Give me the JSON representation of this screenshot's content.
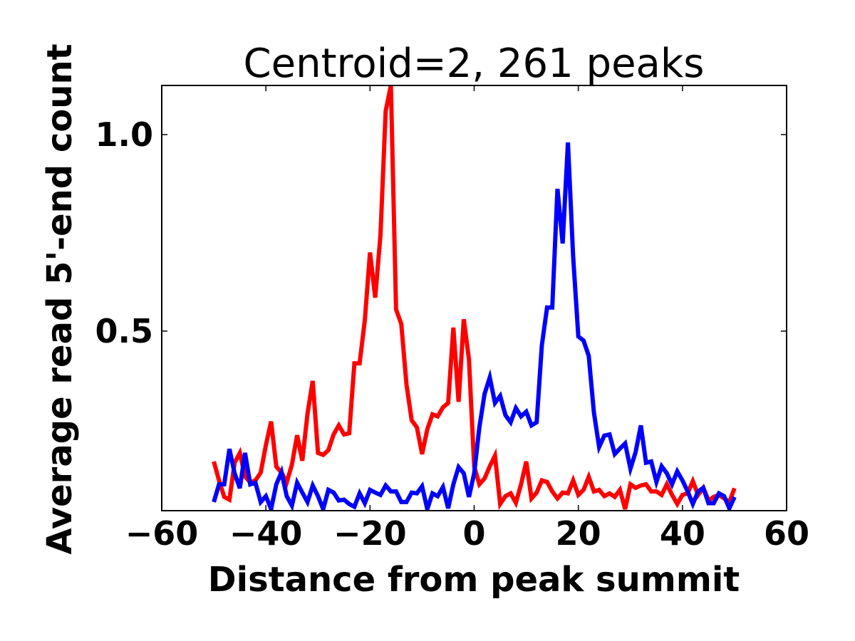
{
  "chart_data": {
    "type": "line",
    "title": "Centroid=2, 261 peaks",
    "xlabel": "Distance from peak summit",
    "ylabel": "Average read 5'-end count",
    "xlim": [
      -60,
      60
    ],
    "ylim": [
      0.043,
      1.125
    ],
    "xticks": [
      -60,
      -40,
      -20,
      0,
      20,
      40,
      60
    ],
    "xtick_labels": [
      "−60",
      "−40",
      "−20",
      "0",
      "20",
      "40",
      "60"
    ],
    "yticks": [
      0.5,
      1.0
    ],
    "ytick_labels": [
      "0.5",
      "1.0"
    ],
    "grid": false,
    "x_start": -50,
    "x_step": 1,
    "series": [
      {
        "name": "red",
        "color": "#ff0000",
        "values": [
          0.168,
          0.12,
          0.078,
          0.071,
          0.165,
          0.19,
          0.13,
          0.115,
          0.12,
          0.14,
          0.21,
          0.27,
          0.155,
          0.14,
          0.115,
          0.16,
          0.235,
          0.17,
          0.29,
          0.373,
          0.19,
          0.185,
          0.197,
          0.237,
          0.26,
          0.237,
          0.24,
          0.418,
          0.418,
          0.527,
          0.7,
          0.585,
          0.745,
          1.06,
          1.125,
          0.555,
          0.518,
          0.364,
          0.273,
          0.255,
          0.187,
          0.25,
          0.288,
          0.283,
          0.306,
          0.317,
          0.509,
          0.32,
          0.53,
          0.428,
          0.156,
          0.11,
          0.125,
          0.156,
          0.183,
          0.06,
          0.08,
          0.087,
          0.063,
          0.11,
          0.168,
          0.074,
          0.089,
          0.12,
          0.116,
          0.092,
          0.074,
          0.089,
          0.087,
          0.12,
          0.083,
          0.096,
          0.129,
          0.092,
          0.096,
          0.08,
          0.087,
          0.078,
          0.096,
          0.047,
          0.11,
          0.101,
          0.107,
          0.11,
          0.092,
          0.092,
          0.083,
          0.11,
          0.083,
          0.06,
          0.083,
          0.087,
          0.118,
          0.083,
          0.101,
          0.069,
          0.078,
          0.083,
          0.074,
          0.065,
          0.1
        ]
      },
      {
        "name": "blue",
        "color": "#0000ff",
        "values": [
          0.065,
          0.11,
          0.11,
          0.2,
          0.138,
          0.1,
          0.19,
          0.11,
          0.114,
          0.065,
          0.08,
          0.047,
          0.11,
          0.141,
          0.08,
          0.056,
          0.114,
          0.089,
          0.065,
          0.107,
          0.08,
          0.047,
          0.096,
          0.089,
          0.069,
          0.071,
          0.06,
          0.053,
          0.087,
          0.062,
          0.096,
          0.089,
          0.083,
          0.107,
          0.092,
          0.092,
          0.065,
          0.065,
          0.089,
          0.087,
          0.105,
          0.047,
          0.087,
          0.08,
          0.103,
          0.049,
          0.11,
          0.154,
          0.138,
          0.078,
          0.138,
          0.255,
          0.34,
          0.382,
          0.317,
          0.335,
          0.286,
          0.268,
          0.304,
          0.283,
          0.295,
          0.26,
          0.268,
          0.464,
          0.56,
          0.56,
          0.862,
          0.723,
          0.98,
          0.69,
          0.486,
          0.476,
          0.437,
          0.292,
          0.205,
          0.234,
          0.237,
          0.187,
          0.201,
          0.214,
          0.15,
          0.192,
          0.26,
          0.165,
          0.168,
          0.116,
          0.156,
          0.138,
          0.11,
          0.143,
          0.12,
          0.092,
          0.06,
          0.092,
          0.101,
          0.062,
          0.062,
          0.087,
          0.08,
          0.049,
          0.078
        ]
      }
    ]
  }
}
